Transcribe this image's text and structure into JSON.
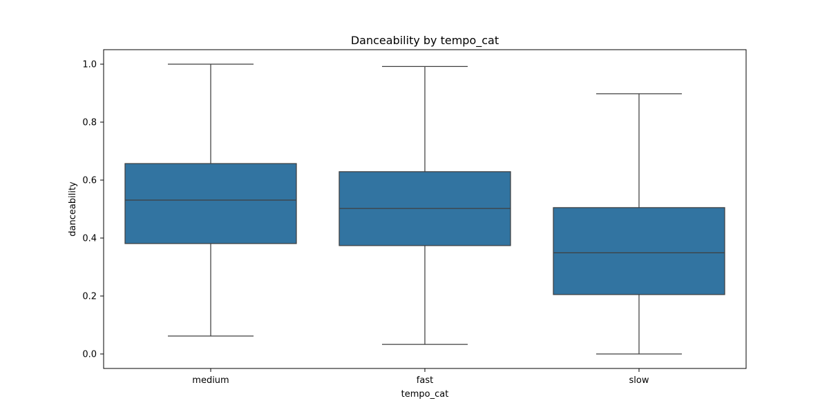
{
  "chart_data": {
    "type": "box",
    "title": "Danceability by tempo_cat",
    "xlabel": "tempo_cat",
    "ylabel": "danceability",
    "ylim": [
      -0.05,
      1.05
    ],
    "yticks": [
      0.0,
      0.2,
      0.4,
      0.6,
      0.8,
      1.0
    ],
    "ytick_labels": [
      "0.0",
      "0.2",
      "0.4",
      "0.6",
      "0.8",
      "1.0"
    ],
    "categories": [
      "medium",
      "fast",
      "slow"
    ],
    "boxes": [
      {
        "category": "medium",
        "whisker_low": 0.062,
        "q1": 0.381,
        "median": 0.531,
        "q3": 0.657,
        "whisker_high": 1.0
      },
      {
        "category": "fast",
        "whisker_low": 0.033,
        "q1": 0.374,
        "median": 0.502,
        "q3": 0.629,
        "whisker_high": 0.992
      },
      {
        "category": "slow",
        "whisker_low": 0.0,
        "q1": 0.205,
        "median": 0.349,
        "q3": 0.505,
        "whisker_high": 0.898
      }
    ],
    "box_color": "#3274a1",
    "line_color": "#3f3f3f",
    "grid": false,
    "legend": "none"
  }
}
